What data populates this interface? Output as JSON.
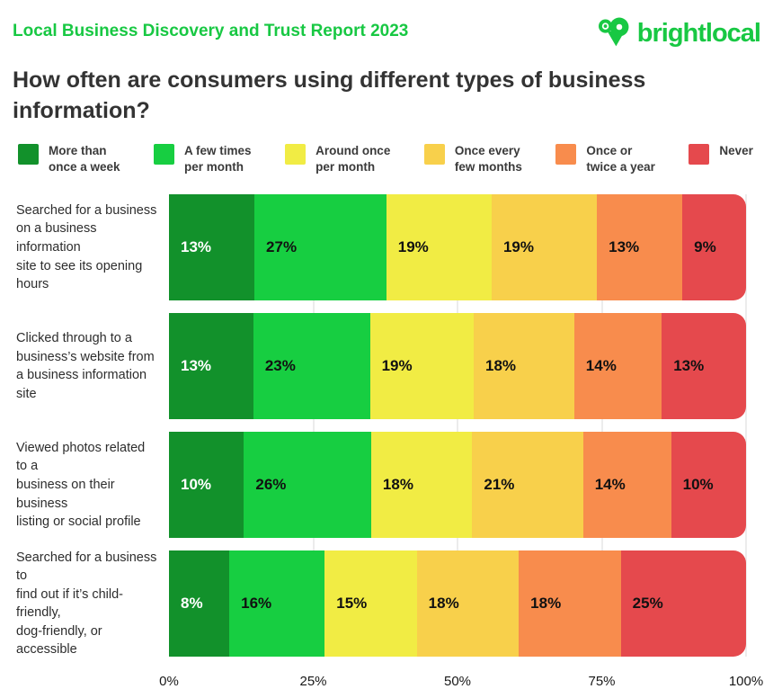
{
  "header": {
    "report_title": "Local Business Discovery and Trust Report 2023",
    "brand_name": "brightlocal",
    "brand_color": "#18C843"
  },
  "title": "How often are consumers using different types of business\ninformation?",
  "chart_data": {
    "type": "bar",
    "orientation": "horizontal",
    "stacked": true,
    "unit": "%",
    "xlim": [
      0,
      100
    ],
    "x_ticks": [
      "0%",
      "25%",
      "50%",
      "75%",
      "100%"
    ],
    "grid": true,
    "legend_position": "top",
    "categories": [
      "Searched for a business\non a business information\nsite to see its opening hours",
      "Clicked through to a\nbusiness’s website from\na business information site",
      "Viewed photos related to a\nbusiness on their business\nlisting or social profile",
      "Searched for a business to\nfind out if it’s child-friendly,\ndog-friendly, or accessible"
    ],
    "series": [
      {
        "name": "More than once a week",
        "legend_label": "More than\nonce a week",
        "color": "#12912B",
        "text_color": "#ffffff",
        "values": [
          13,
          13,
          10,
          8
        ]
      },
      {
        "name": "A few times per month",
        "legend_label": "A few times\nper month",
        "color": "#17CE41",
        "text_color": "#111111",
        "values": [
          27,
          23,
          26,
          16
        ]
      },
      {
        "name": "Around once per month",
        "legend_label": "Around once\nper month",
        "color": "#F1EC44",
        "text_color": "#111111",
        "values": [
          19,
          19,
          18,
          15
        ]
      },
      {
        "name": "Once every few months",
        "legend_label": "Once every\nfew months",
        "color": "#F8D04B",
        "text_color": "#111111",
        "values": [
          19,
          18,
          21,
          18
        ]
      },
      {
        "name": "Once or twice a year",
        "legend_label": "Once or\ntwice a year",
        "color": "#F88C4D",
        "text_color": "#111111",
        "values": [
          13,
          14,
          14,
          18
        ]
      },
      {
        "name": "Never",
        "legend_label": "Never",
        "color": "#E5494D",
        "text_color": "#111111",
        "values": [
          9,
          13,
          10,
          25
        ]
      }
    ]
  }
}
